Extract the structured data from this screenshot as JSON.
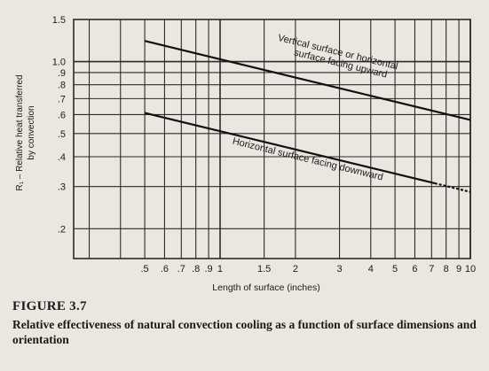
{
  "figure": {
    "label": "FIGURE 3.7",
    "caption": "Relative effectiveness of natural convection cooling as a function of surface dimensions and orientation"
  },
  "chart_data": {
    "type": "line",
    "xscale": "log",
    "yscale": "log",
    "xlabel": "Length of surface (inches)",
    "ylabel_line1": "R₁ – Relative heat transferred",
    "ylabel_line2": "by convection",
    "xlim": [
      0.26,
      10
    ],
    "ylim": [
      0.15,
      1.5
    ],
    "x_ticks": [
      {
        "value": 0.5,
        "label": ".5"
      },
      {
        "value": 0.6,
        "label": ".6"
      },
      {
        "value": 0.7,
        "label": ".7"
      },
      {
        "value": 0.8,
        "label": ".8"
      },
      {
        "value": 0.9,
        "label": ".9"
      },
      {
        "value": 1,
        "label": "1"
      },
      {
        "value": 1.5,
        "label": "1.5"
      },
      {
        "value": 2,
        "label": "2"
      },
      {
        "value": 3,
        "label": "3"
      },
      {
        "value": 4,
        "label": "4"
      },
      {
        "value": 5,
        "label": "5"
      },
      {
        "value": 6,
        "label": "6"
      },
      {
        "value": 7,
        "label": "7"
      },
      {
        "value": 8,
        "label": "8"
      },
      {
        "value": 9,
        "label": "9"
      },
      {
        "value": 10,
        "label": "10"
      }
    ],
    "x_grid": [
      0.3,
      0.4,
      0.5,
      0.6,
      0.7,
      0.8,
      0.9,
      1,
      1.5,
      2,
      3,
      4,
      5,
      6,
      7,
      8,
      9,
      10
    ],
    "y_ticks": [
      {
        "value": 1.5,
        "label": "1.5"
      },
      {
        "value": 1.0,
        "label": "1.0"
      },
      {
        "value": 0.9,
        "label": ".9"
      },
      {
        "value": 0.8,
        "label": ".8"
      },
      {
        "value": 0.7,
        "label": ".7"
      },
      {
        "value": 0.6,
        "label": ".6"
      },
      {
        "value": 0.5,
        "label": ".5"
      },
      {
        "value": 0.4,
        "label": ".4"
      },
      {
        "value": 0.3,
        "label": ".3"
      },
      {
        "value": 0.2,
        "label": ".2"
      }
    ],
    "y_grid": [
      1.5,
      1.0,
      0.9,
      0.8,
      0.7,
      0.6,
      0.5,
      0.4,
      0.3,
      0.2
    ],
    "grid": true,
    "series": [
      {
        "name": "Vertical surface or horizontal surface facing upward",
        "label_lines": [
          "Vertical surface or horizontal",
          "surface facing upward"
        ],
        "x": [
          0.5,
          10
        ],
        "y": [
          1.22,
          0.57
        ],
        "dash": false
      },
      {
        "name": "Horizontal surface facing downward",
        "label_lines": [
          "Horizontal surface facing downward"
        ],
        "x": [
          0.5,
          10
        ],
        "y": [
          0.61,
          0.285
        ],
        "dash": true
      }
    ]
  },
  "colors": {
    "background": "#ebe7e0",
    "grid": "#2a2a2a",
    "line": "#111111",
    "text": "#1a1a1a"
  }
}
